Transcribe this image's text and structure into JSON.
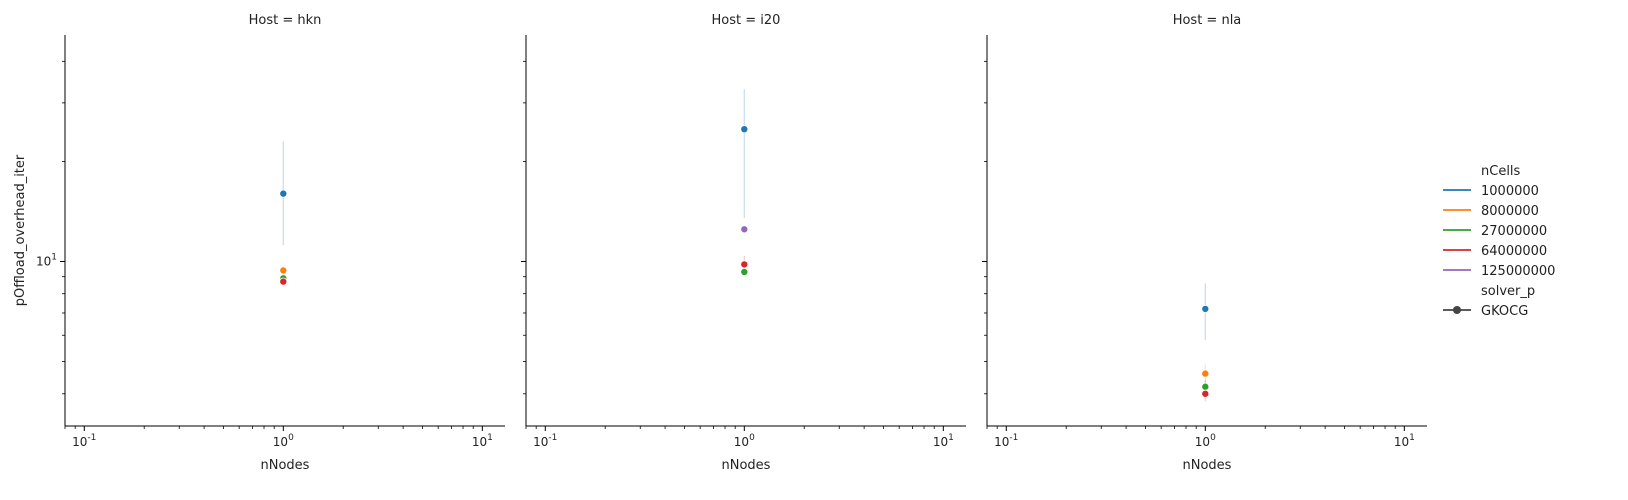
{
  "chart_data": {
    "type": "scatter",
    "xlabel": "nNodes",
    "ylabel": "pOffload_overhead_iter",
    "xscale": "log",
    "yscale": "log",
    "xlim": [
      0.08,
      13
    ],
    "ylim": [
      3.2,
      48
    ],
    "x_ticks": [
      "10^-1",
      "10^0",
      "10^1"
    ],
    "y_ticks": [
      "10^1"
    ],
    "panels": [
      {
        "title": "Host = hkn",
        "points": [
          {
            "series": "1000000",
            "x": 1,
            "y": 16.0,
            "ci": [
              11.2,
              23.0
            ]
          },
          {
            "series": "8000000",
            "x": 1,
            "y": 9.4,
            "ci": [
              9.1,
              9.7
            ]
          },
          {
            "series": "27000000",
            "x": 1,
            "y": 8.9,
            "ci": [
              8.7,
              9.1
            ]
          },
          {
            "series": "64000000",
            "x": 1,
            "y": 8.7,
            "ci": [
              8.5,
              8.9
            ]
          }
        ]
      },
      {
        "title": "Host = i20",
        "points": [
          {
            "series": "1000000",
            "x": 1,
            "y": 25.0,
            "ci": [
              13.5,
              33.0
            ]
          },
          {
            "series": "125000000",
            "x": 1,
            "y": 12.5,
            "ci": [
              12.2,
              12.8
            ]
          },
          {
            "series": "64000000",
            "x": 1,
            "y": 9.8,
            "ci": [
              9.2,
              10.4
            ]
          },
          {
            "series": "27000000",
            "x": 1,
            "y": 9.3,
            "ci": [
              9.1,
              9.5
            ]
          }
        ]
      },
      {
        "title": "Host = nla",
        "points": [
          {
            "series": "1000000",
            "x": 1,
            "y": 7.2,
            "ci": [
              5.8,
              8.6
            ]
          },
          {
            "series": "8000000",
            "x": 1,
            "y": 4.6,
            "ci": [
              4.3,
              4.9
            ]
          },
          {
            "series": "27000000",
            "x": 1,
            "y": 4.2,
            "ci": [
              4.0,
              4.4
            ]
          },
          {
            "series": "64000000",
            "x": 1,
            "y": 4.0,
            "ci": [
              3.8,
              4.2
            ]
          }
        ]
      }
    ],
    "legend": {
      "placement": "right",
      "hue_title": "nCells",
      "hue_entries": [
        {
          "label": "1000000",
          "color": "#1f77b4"
        },
        {
          "label": "8000000",
          "color": "#ff7f0e"
        },
        {
          "label": "27000000",
          "color": "#2ca02c"
        },
        {
          "label": "64000000",
          "color": "#d62728"
        },
        {
          "label": "125000000",
          "color": "#9467bd"
        }
      ],
      "style_title": "solver_p",
      "style_entries": [
        {
          "label": "GKOCG",
          "color": "#444444"
        }
      ]
    }
  }
}
